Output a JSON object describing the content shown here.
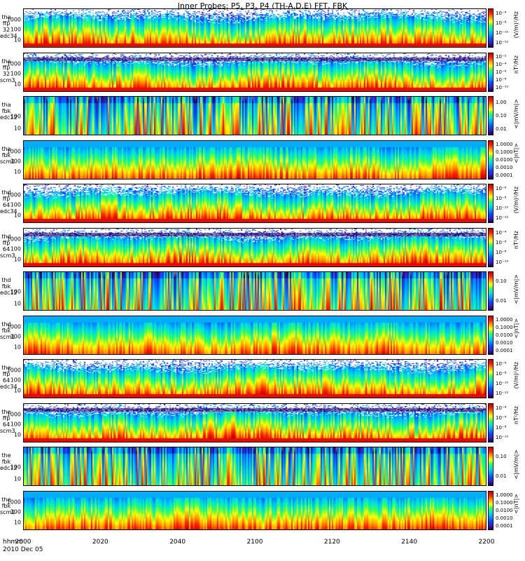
{
  "chart_data": {
    "type": "heatmap",
    "title": "Inner Probes: P5, P3, P4 (TH-A,D,E) FFT, FBK",
    "xlabel": "hhmm",
    "date": "2010 Dec 05",
    "x_ticks": [
      "2000",
      "2020",
      "2040",
      "2100",
      "2120",
      "2140",
      "2200"
    ],
    "panels": [
      {
        "label": [
          "tha",
          "ffp",
          "32",
          "edc34"
        ],
        "yticks": [
          "1000",
          "100",
          "10"
        ],
        "cb_ticks": [
          "10⁻⁶",
          "10⁻⁸",
          "10⁻¹⁰",
          "10⁻¹²"
        ],
        "cb_unit": "(V/m)²/Hz",
        "kind": "edc"
      },
      {
        "label": [
          "tha",
          "ffp",
          "32",
          "scm3"
        ],
        "yticks": [
          "1000",
          "100",
          "10"
        ],
        "cb_ticks": [
          "10⁻²",
          "10⁻⁴",
          "10⁻⁶",
          "10⁻⁸",
          "10⁻¹⁰"
        ],
        "cb_unit": "nT²/Hz",
        "kind": "scm"
      },
      {
        "label": [
          "tha",
          "fbk",
          "edc12"
        ],
        "yticks": [
          "100",
          "10"
        ],
        "cb_ticks": [
          "1.00",
          "0.10",
          "0.01"
        ],
        "cb_unit": "<|mV/m|>",
        "kind": "fbke"
      },
      {
        "label": [
          "tha",
          "fbk",
          "scm1"
        ],
        "yticks": [
          "1000",
          "100",
          "10"
        ],
        "cb_ticks": [
          "1.0000",
          "0.1000",
          "0.0100",
          "0.0010",
          "0.0001"
        ],
        "cb_unit": "<|nT|>",
        "kind": "fbkb"
      },
      {
        "label": [
          "thd",
          "ffp",
          "64",
          "edc34"
        ],
        "yticks": [
          "1000",
          "100",
          "10"
        ],
        "cb_ticks": [
          "10⁻⁶",
          "10⁻⁸",
          "10⁻¹⁰",
          "10⁻¹²"
        ],
        "cb_unit": "(V/m)²/Hz",
        "kind": "edc"
      },
      {
        "label": [
          "thd",
          "ffp",
          "64",
          "scm3"
        ],
        "yticks": [
          "1000",
          "100",
          "10"
        ],
        "cb_ticks": [
          "10⁻⁴",
          "10⁻⁶",
          "10⁻⁸",
          "10⁻¹⁰"
        ],
        "cb_unit": "nT²/Hz",
        "kind": "scm"
      },
      {
        "label": [
          "thd",
          "fbk",
          "edc12"
        ],
        "yticks": [
          "100",
          "10"
        ],
        "cb_ticks": [
          "0.10",
          "0.01"
        ],
        "cb_unit": "<|mV/m|>",
        "kind": "fbke"
      },
      {
        "label": [
          "thd",
          "fbk",
          "scm1"
        ],
        "yticks": [
          "1000",
          "100",
          "10"
        ],
        "cb_ticks": [
          "1.0000",
          "0.1000",
          "0.0100",
          "0.0010",
          "0.0001"
        ],
        "cb_unit": "<|nT|>",
        "kind": "fbkb"
      },
      {
        "label": [
          "the",
          "ffp",
          "64",
          "edc34"
        ],
        "yticks": [
          "1000",
          "100",
          "10"
        ],
        "cb_ticks": [
          "10⁻⁶",
          "10⁻⁸",
          "10⁻¹⁰",
          "10⁻¹²"
        ],
        "cb_unit": "(V/m)²/Hz",
        "kind": "edc"
      },
      {
        "label": [
          "the",
          "ffp",
          "64",
          "scm3"
        ],
        "yticks": [
          "1000",
          "100",
          "10"
        ],
        "cb_ticks": [
          "10⁻⁴",
          "10⁻⁶",
          "10⁻⁸",
          "10⁻¹⁰"
        ],
        "cb_unit": "nT²/Hz",
        "kind": "scm"
      },
      {
        "label": [
          "the",
          "fbk",
          "edc12"
        ],
        "yticks": [
          "100",
          "10"
        ],
        "cb_ticks": [
          "0.10",
          "0.01"
        ],
        "cb_unit": "<|mV/m|>",
        "kind": "fbke"
      },
      {
        "label": [
          "the",
          "fbk",
          "scm1"
        ],
        "yticks": [
          "1000",
          "100",
          "10"
        ],
        "cb_ticks": [
          "1.0000",
          "0.1000",
          "0.0100",
          "0.0010",
          "0.0001"
        ],
        "cb_unit": "<|nT|>",
        "kind": "fbkb"
      }
    ],
    "colormap": [
      "#ffffff",
      "#1a004a",
      "#3a1cc8",
      "#0050ff",
      "#00a0ff",
      "#00e0e0",
      "#30ff60",
      "#ffff00",
      "#ffa000",
      "#ff2000",
      "#c00000"
    ]
  }
}
